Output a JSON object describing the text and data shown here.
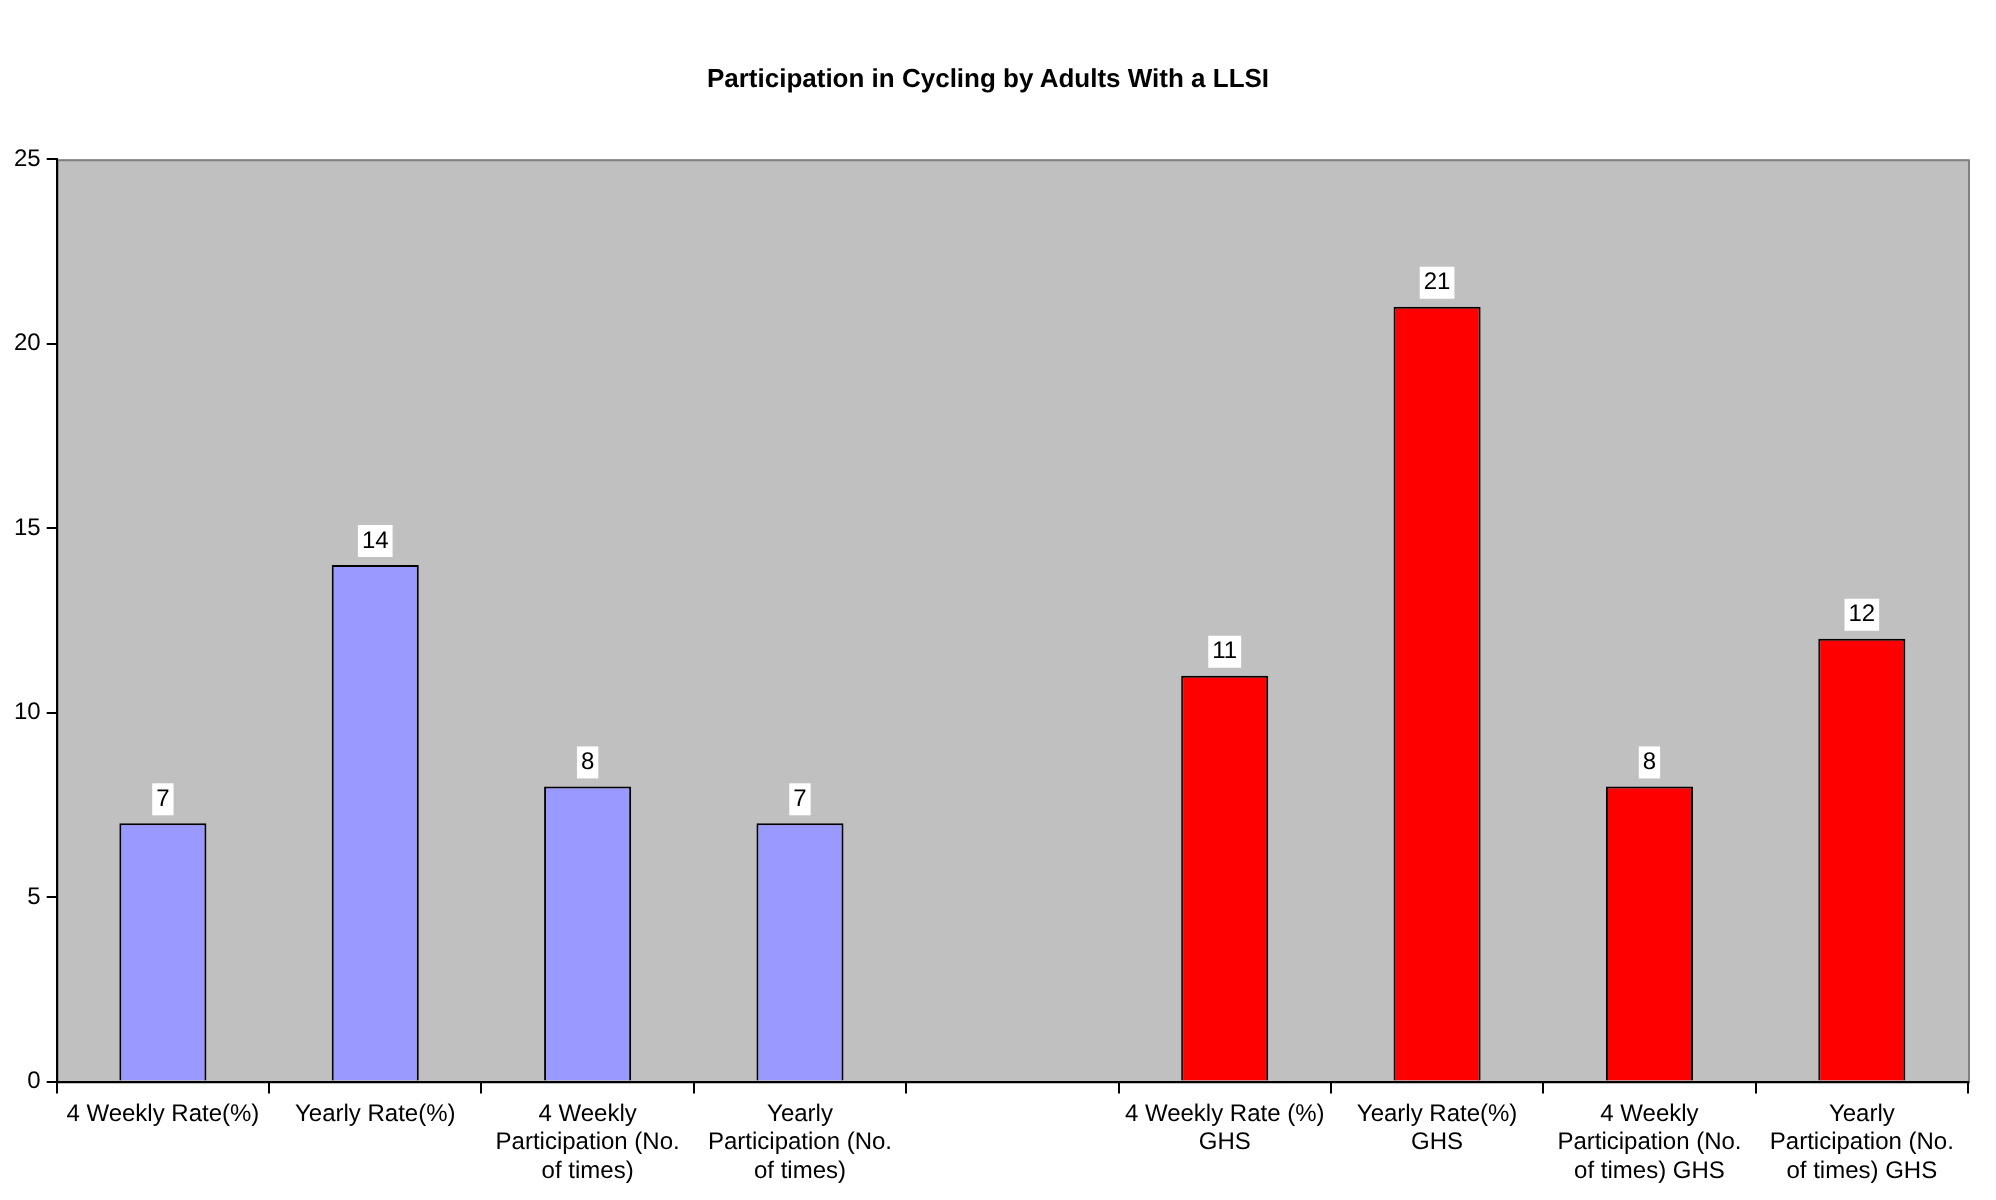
{
  "chart_data": {
    "type": "bar",
    "title": "Participation in Cycling by Adults With a LLSI",
    "categories": [
      "4 Weekly Rate(%)",
      "Yearly Rate(%)",
      "4 Weekly Participation (No. of times)",
      "Yearly Participation (No. of times)",
      null,
      "4 Weekly Rate (%) GHS",
      "Yearly Rate(%) GHS",
      "4 Weekly Participation (No. of times) GHS",
      "Yearly Participation (No. of times) GHS"
    ],
    "values": [
      7,
      14,
      8,
      7,
      null,
      11,
      21,
      8,
      12
    ],
    "colors": [
      "#9999ff",
      "#9999ff",
      "#9999ff",
      "#9999ff",
      "#9999ff",
      "#ff0000",
      "#ff0000",
      "#ff0000",
      "#ff0000"
    ],
    "ylim": [
      0,
      25
    ],
    "yticks": [
      0,
      5,
      10,
      15,
      20,
      25
    ],
    "grid": false,
    "legend": false,
    "data_labels": true
  }
}
